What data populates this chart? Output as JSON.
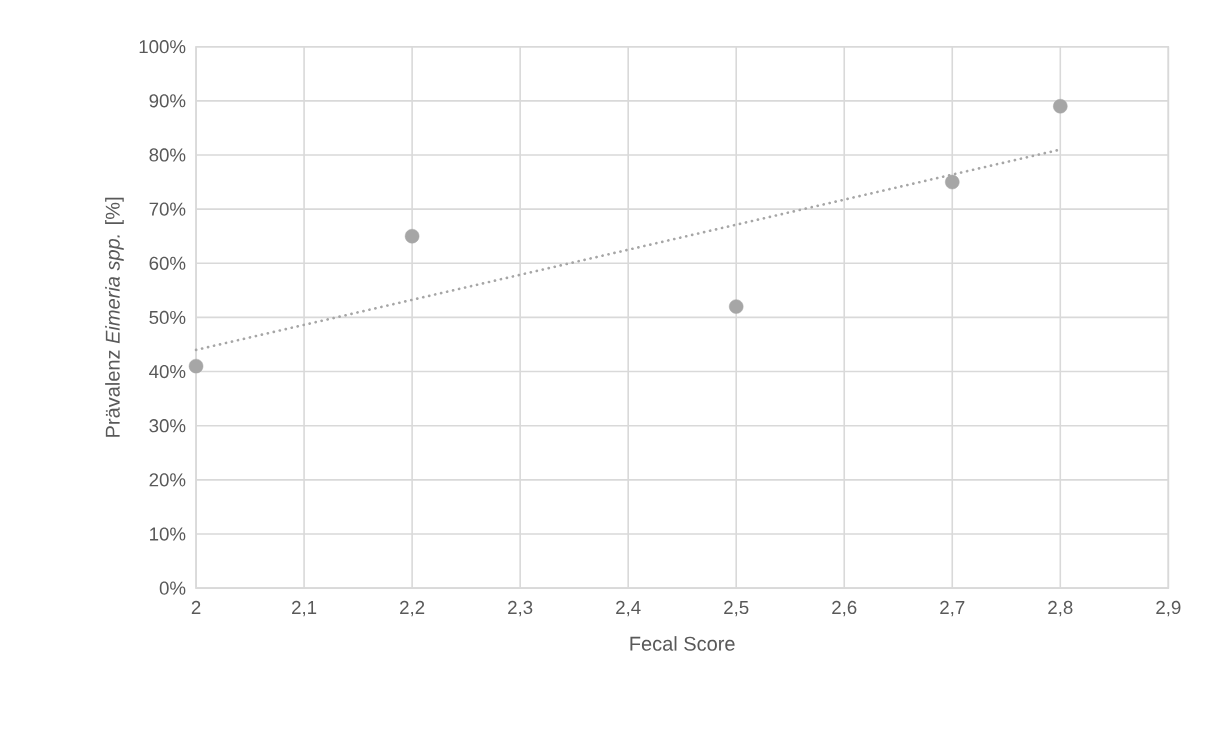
{
  "chart_data": {
    "type": "scatter",
    "xlabel": "Fecal Score",
    "ylabel": "Prävalenz *Eimeria spp.* [%]",
    "series": [
      {
        "color": "#a6a6a6",
        "marker": "circle",
        "x": [
          2,
          2.2,
          2.5,
          2.7,
          2.8
        ],
        "values": [
          41,
          65,
          52,
          75,
          89
        ]
      },
      {
        "type": "line",
        "color": "#a6a6a6",
        "marker": "none",
        "line_style": "dotted",
        "x": [
          2,
          2.8
        ],
        "values": [
          44,
          81
        ]
      }
    ],
    "xlim": [
      2,
      2.9
    ],
    "ylim": [
      0,
      100
    ],
    "xticks": [
      2,
      {
        "value": 2.1,
        "label": "2,1"
      },
      {
        "value": 2.2,
        "label": "2,2"
      },
      {
        "value": 2.3,
        "label": "2,3"
      },
      {
        "value": 2.4,
        "label": "2,4"
      },
      {
        "value": 2.5,
        "label": "2,5"
      },
      {
        "value": 2.6,
        "label": "2,6"
      },
      {
        "value": 2.7,
        "label": "2,7"
      },
      {
        "value": 2.8,
        "label": "2,8"
      },
      {
        "value": 2.9,
        "label": "2,9"
      }
    ],
    "yticks": [
      {
        "value": 0,
        "label": "0%"
      },
      {
        "value": 10,
        "label": "10%"
      },
      {
        "value": 20,
        "label": "20%"
      },
      {
        "value": 30,
        "label": "30%"
      },
      {
        "value": 40,
        "label": "40%"
      },
      {
        "value": 50,
        "label": "50%"
      },
      {
        "value": 60,
        "label": "60%"
      },
      {
        "value": 70,
        "label": "70%"
      },
      {
        "value": 80,
        "label": "80%"
      },
      {
        "value": 90,
        "label": "90%"
      },
      {
        "value": 100,
        "label": "100%"
      }
    ],
    "grid": true,
    "legend": false
  }
}
